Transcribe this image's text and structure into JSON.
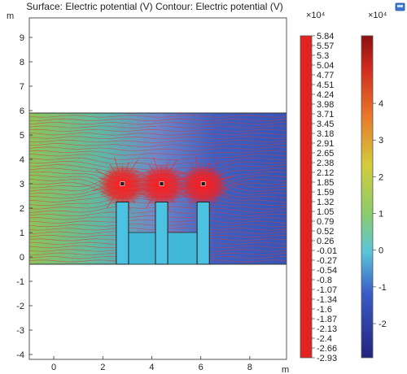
{
  "chart_data": {
    "type": "heatmap",
    "title": "Surface: Electric potential (V)  Contour: Electric potential (V)",
    "xlabel": "m",
    "ylabel": "m",
    "xlim": [
      -1.0,
      9.5
    ],
    "ylim": [
      -4.2,
      9.8
    ],
    "xticks": [
      "0",
      "2",
      "4",
      "6",
      "8"
    ],
    "yticks": [
      "9",
      "8",
      "7",
      "6",
      "5",
      "4",
      "3",
      "2",
      "1",
      "0",
      "-1",
      "-2",
      "-3",
      "-4"
    ],
    "domain": {
      "x": [
        -1.0,
        9.5
      ],
      "y": [
        -0.3,
        5.9
      ]
    },
    "electrodes": [
      {
        "x": [
          2.55,
          3.05
        ],
        "y": [
          -0.3,
          2.25
        ]
      },
      {
        "x": [
          4.15,
          4.65
        ],
        "y": [
          -0.3,
          2.25
        ]
      },
      {
        "x": [
          5.85,
          6.35
        ],
        "y": [
          -0.3,
          2.25
        ]
      }
    ],
    "grounds": [
      {
        "x": [
          3.05,
          4.15
        ],
        "y": [
          -0.3,
          1.0
        ]
      },
      {
        "x": [
          4.65,
          5.85
        ],
        "y": [
          -0.3,
          1.0
        ]
      }
    ],
    "sources": [
      {
        "x": 2.8,
        "y": 3.0
      },
      {
        "x": 4.4,
        "y": 3.0
      },
      {
        "x": 6.1,
        "y": 3.0
      }
    ],
    "contour_legend": {
      "multiplier": "×10⁴",
      "max": 5.84,
      "min": -2.93,
      "labels": [
        "5.84",
        "5.57",
        "5.3",
        "5.04",
        "4.77",
        "4.51",
        "4.24",
        "3.98",
        "3.71",
        "3.45",
        "3.18",
        "2.91",
        "2.65",
        "2.38",
        "2.12",
        "1.85",
        "1.59",
        "1.32",
        "1.05",
        "0.79",
        "0.52",
        "0.26",
        "-0.01",
        "-0.27",
        "-0.54",
        "-0.8",
        "-1.07",
        "-1.34",
        "-1.6",
        "-1.87",
        "-2.13",
        "-2.4",
        "-2.66",
        "-2.93"
      ]
    },
    "surface_colorbar": {
      "multiplier": "×10⁴",
      "range": [
        -2.93,
        5.84
      ],
      "ticks": [
        "4",
        "3",
        "2",
        "1",
        "0",
        "-1",
        "-2"
      ],
      "tick_values": [
        4,
        3,
        2,
        1,
        0,
        -1,
        -2
      ]
    },
    "grid": false
  }
}
